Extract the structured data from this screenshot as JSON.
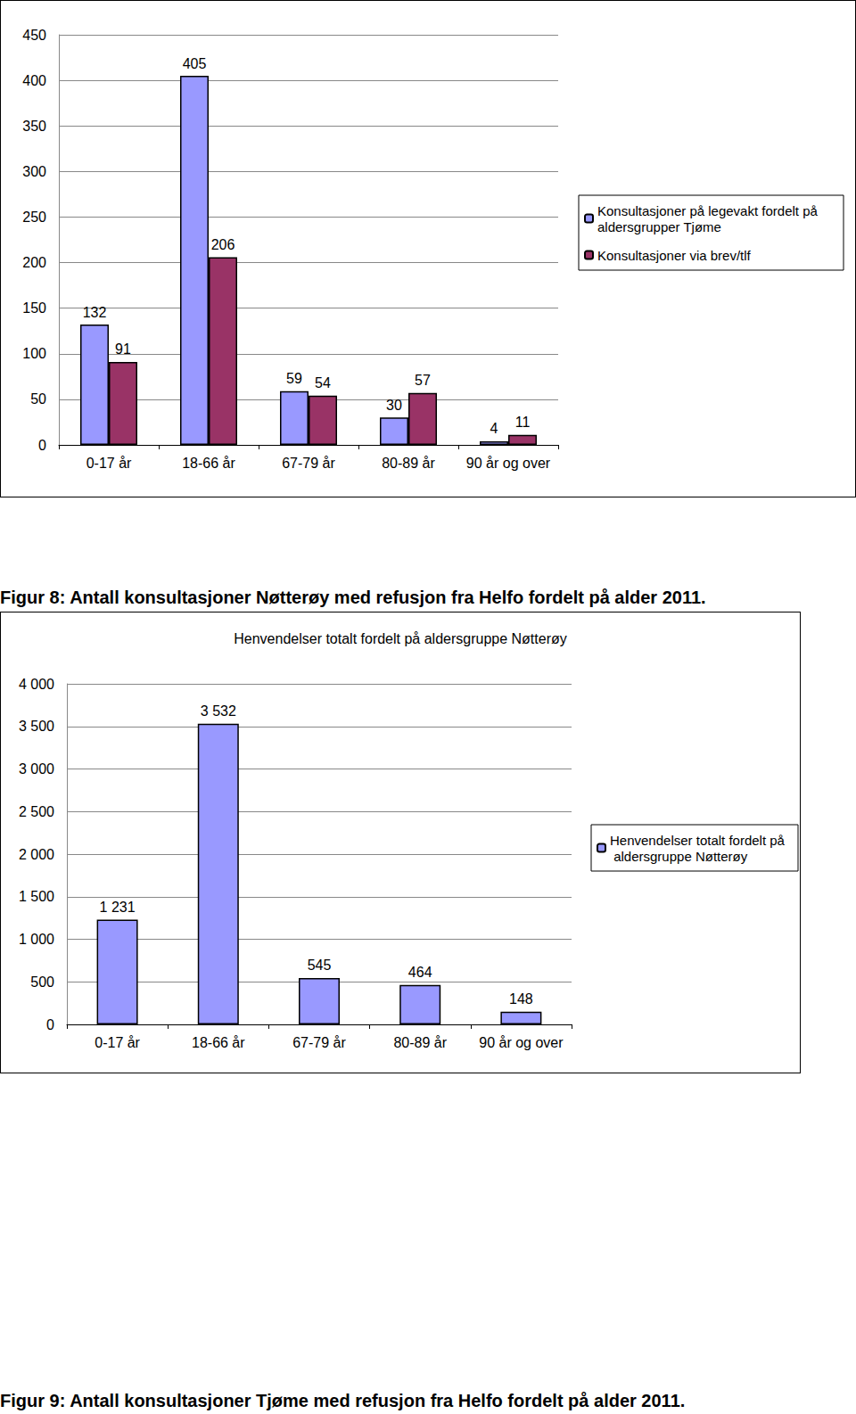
{
  "chart_data": [
    {
      "type": "bar",
      "categories": [
        "0-17 år",
        "18-66 år",
        "67-79 år",
        "80-89 år",
        "90 år og over"
      ],
      "series": [
        {
          "name": "Konsultasjoner på legevakt fordelt på aldersgrupper Tjøme",
          "color": "#9999ff",
          "values": [
            132,
            405,
            59,
            30,
            4
          ]
        },
        {
          "name": "Konsultasjoner via brev/tlf",
          "color": "#993366",
          "values": [
            91,
            206,
            54,
            57,
            11
          ]
        }
      ],
      "ylim": [
        0,
        450
      ],
      "yticks": [
        0,
        50,
        100,
        150,
        200,
        250,
        300,
        350,
        400,
        450
      ],
      "grid": true,
      "legend": "right",
      "data_labels": true
    },
    {
      "type": "bar",
      "title": "Henvendelser totalt fordelt på aldersgruppe Nøtterøy",
      "categories": [
        "0-17 år",
        "18-66 år",
        "67-79 år",
        "80-89 år",
        "90 år og over"
      ],
      "series": [
        {
          "name": "Henvendelser totalt fordelt på aldersgruppe Nøtterøy",
          "color": "#9999ff",
          "values": [
            1231,
            3532,
            545,
            464,
            148
          ],
          "value_labels": [
            "1 231",
            "3 532",
            "545",
            "464",
            "148"
          ]
        }
      ],
      "ylim": [
        0,
        4000
      ],
      "yticks": [
        0,
        500,
        {
          "value": 1000,
          "label": "1 000"
        },
        {
          "value": 1500,
          "label": "1 500"
        },
        {
          "value": 2000,
          "label": "2 000"
        },
        {
          "value": 2500,
          "label": "2 500"
        },
        {
          "value": 3000,
          "label": "3 000"
        },
        {
          "value": 3500,
          "label": "3 500"
        },
        {
          "value": 4000,
          "label": "4 000"
        }
      ],
      "grid": true,
      "legend": "right",
      "data_labels": true
    }
  ],
  "captions": [
    "Figur 8: Antall konsultasjoner Nøtterøy med refusjon fra Helfo fordelt på alder 2011.",
    "Figur 9: Antall konsultasjoner Tjøme med refusjon fra Helfo fordelt på alder 2011."
  ]
}
